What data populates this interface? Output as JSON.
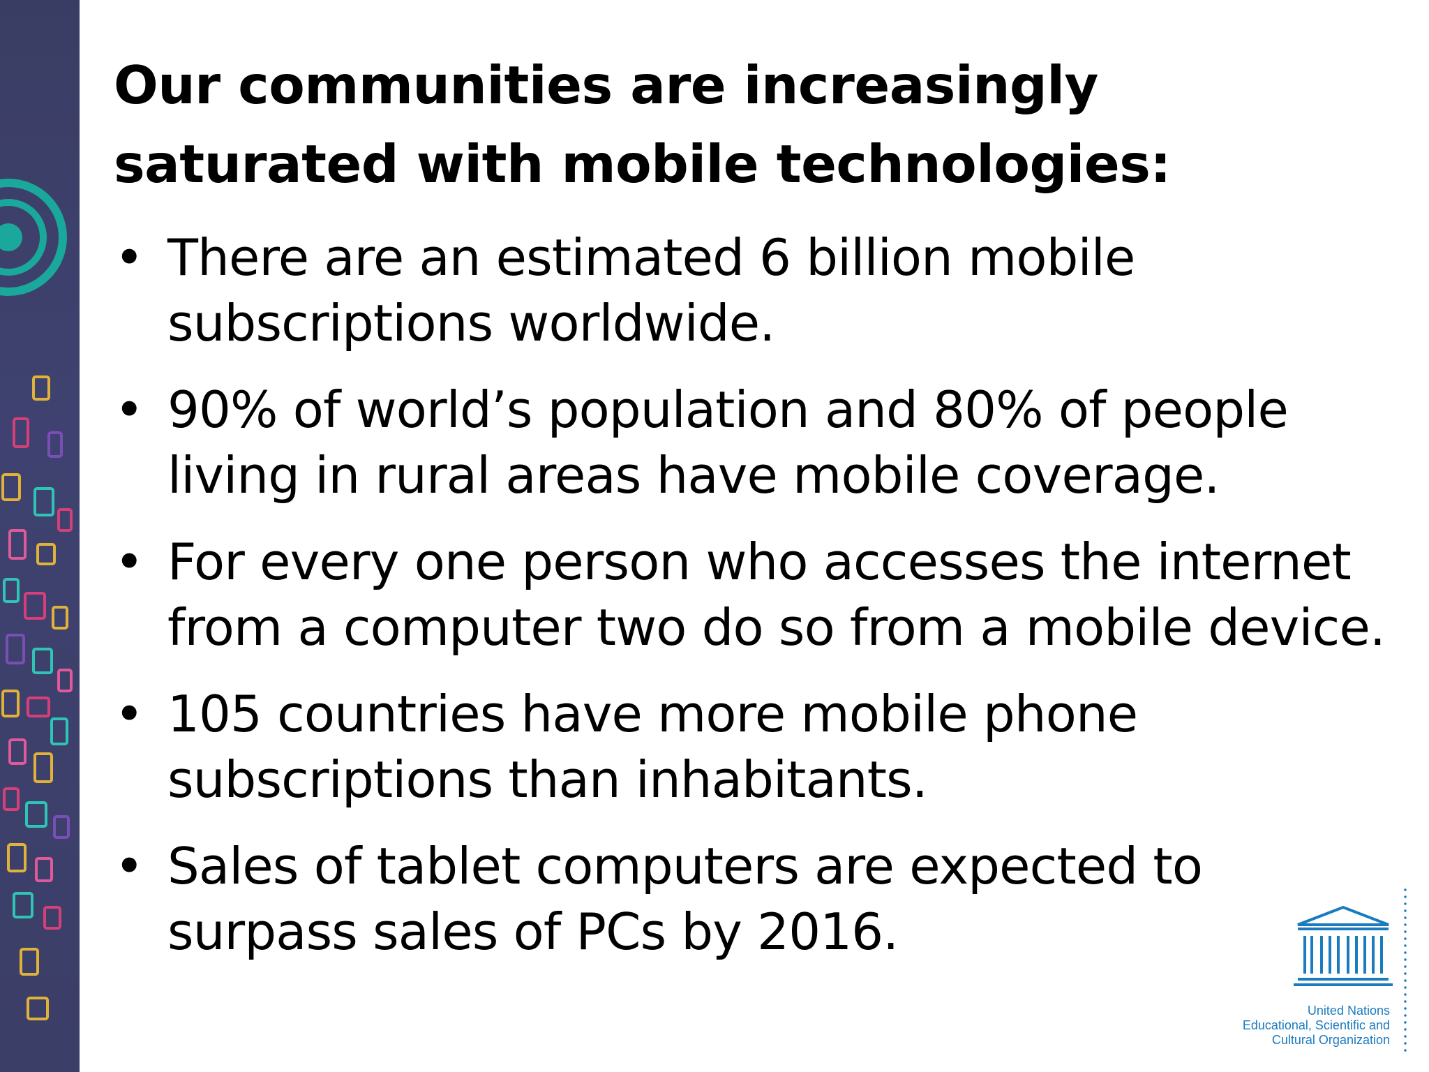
{
  "slide": {
    "title": "Our communities are increasingly saturated with mobile technologies:",
    "bullet_symbol": "•",
    "bullets": [
      "There are an estimated 6 billion mobile subscriptions worldwide.",
      "90% of world’s population and 80% of people living in rural areas have mobile coverage.",
      "For every one person who accesses the internet from a computer two do so from a mobile device.",
      "105 countries have more mobile phone subscriptions than inhabitants.",
      "Sales of tablet computers are expected to surpass sales of PCs by 2016."
    ]
  },
  "logo": {
    "wordmark": "UNESCO",
    "lines": [
      "United Nations",
      "Educational, Scientific and",
      "Cultural Organization"
    ],
    "color": "#1a7bbf"
  },
  "theme": {
    "band_color": "#3b3e66",
    "accent_teal": "#1aa89c"
  }
}
